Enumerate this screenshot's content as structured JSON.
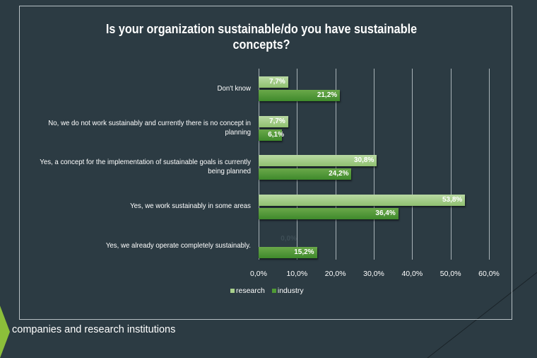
{
  "chart_data": {
    "type": "bar",
    "orientation": "horizontal",
    "title": "Is your organization sustainable/do you have sustainable concepts?",
    "categories": [
      "Don't know",
      "No, we do not work sustainably and currently there is no concept in planning",
      "Yes, a concept for the implementation of sustainable goals is currently being planned",
      "Yes, we work sustainably in some areas",
      "Yes, we already operate completely sustainably."
    ],
    "series": [
      {
        "name": "research",
        "color": "#a8cf8c",
        "values": [
          7.7,
          7.7,
          30.8,
          53.8,
          0.0
        ],
        "labels": [
          "7,7%",
          "7,7%",
          "30,8%",
          "53,8%",
          "0,0%"
        ]
      },
      {
        "name": "industry",
        "color": "#4f9a35",
        "values": [
          21.2,
          6.1,
          24.2,
          36.4,
          15.2
        ],
        "labels": [
          "21,2%",
          "6,1%",
          "24,2%",
          "36,4%",
          "15,2%"
        ]
      }
    ],
    "xlim": [
      0,
      60
    ],
    "ticks": [
      "0,0%",
      "10,0%",
      "20,0%",
      "30,0%",
      "40,0%",
      "50,0%",
      "60,0%"
    ],
    "grid": true,
    "legend": "bottom"
  },
  "caption": "companies and research institutions"
}
